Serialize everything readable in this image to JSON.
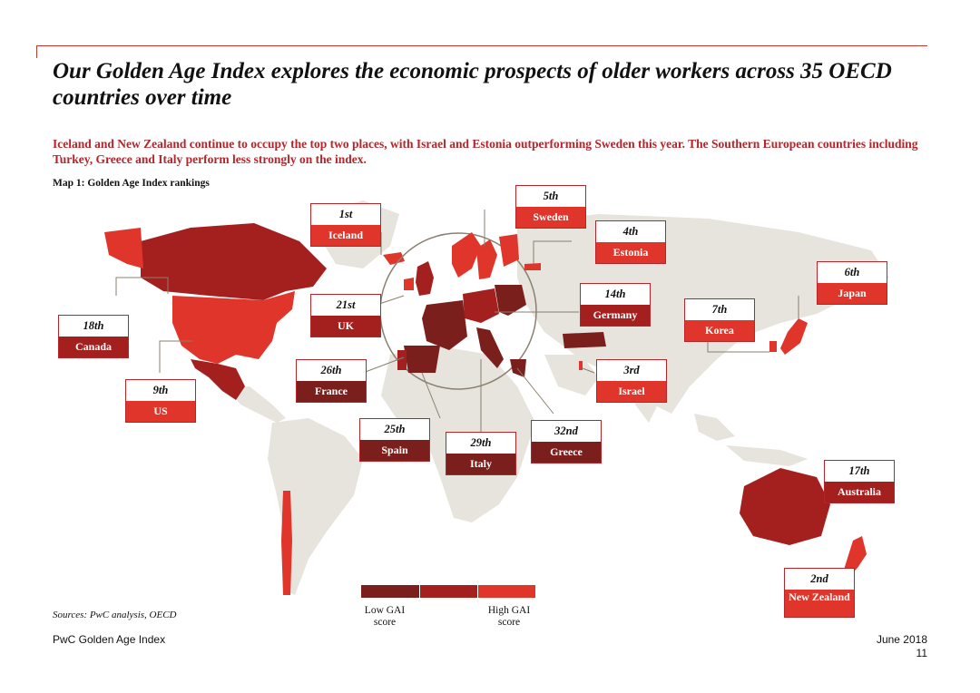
{
  "title": "Our Golden Age Index explores the economic prospects of older workers across 35 OECD countries over time",
  "subtitle": "Iceland and New Zealand continue to occupy the top two places, with Israel and Estonia outperforming Sweden this year. The Southern European countries including Turkey, Greece and Italy perform less strongly on the index.",
  "map_label": "Map 1: Golden Age Index rankings",
  "colors": {
    "low": "#7a1f1c",
    "mid": "#a3201f",
    "high": "#e0352a",
    "land": "#e7e3dd"
  },
  "rankings": [
    {
      "rank": "1st",
      "country": "Iceland",
      "tier": "high"
    },
    {
      "rank": "2nd",
      "country": "New Zealand",
      "tier": "high"
    },
    {
      "rank": "3rd",
      "country": "Israel",
      "tier": "high"
    },
    {
      "rank": "4th",
      "country": "Estonia",
      "tier": "high"
    },
    {
      "rank": "5th",
      "country": "Sweden",
      "tier": "high"
    },
    {
      "rank": "6th",
      "country": "Japan",
      "tier": "high"
    },
    {
      "rank": "7th",
      "country": "Korea",
      "tier": "high"
    },
    {
      "rank": "9th",
      "country": "US",
      "tier": "high"
    },
    {
      "rank": "14th",
      "country": "Germany",
      "tier": "mid"
    },
    {
      "rank": "17th",
      "country": "Australia",
      "tier": "mid"
    },
    {
      "rank": "18th",
      "country": "Canada",
      "tier": "mid"
    },
    {
      "rank": "21st",
      "country": "UK",
      "tier": "mid"
    },
    {
      "rank": "25th",
      "country": "Spain",
      "tier": "low"
    },
    {
      "rank": "26th",
      "country": "France",
      "tier": "low"
    },
    {
      "rank": "29th",
      "country": "Italy",
      "tier": "low"
    },
    {
      "rank": "32nd",
      "country": "Greece",
      "tier": "low"
    }
  ],
  "legend": {
    "low_label": "Low GAI score",
    "high_label": "High GAI score"
  },
  "sources": "Sources: PwC analysis, OECD",
  "footer": {
    "left": "PwC Golden Age Index",
    "date": "June 2018",
    "page": "11"
  }
}
